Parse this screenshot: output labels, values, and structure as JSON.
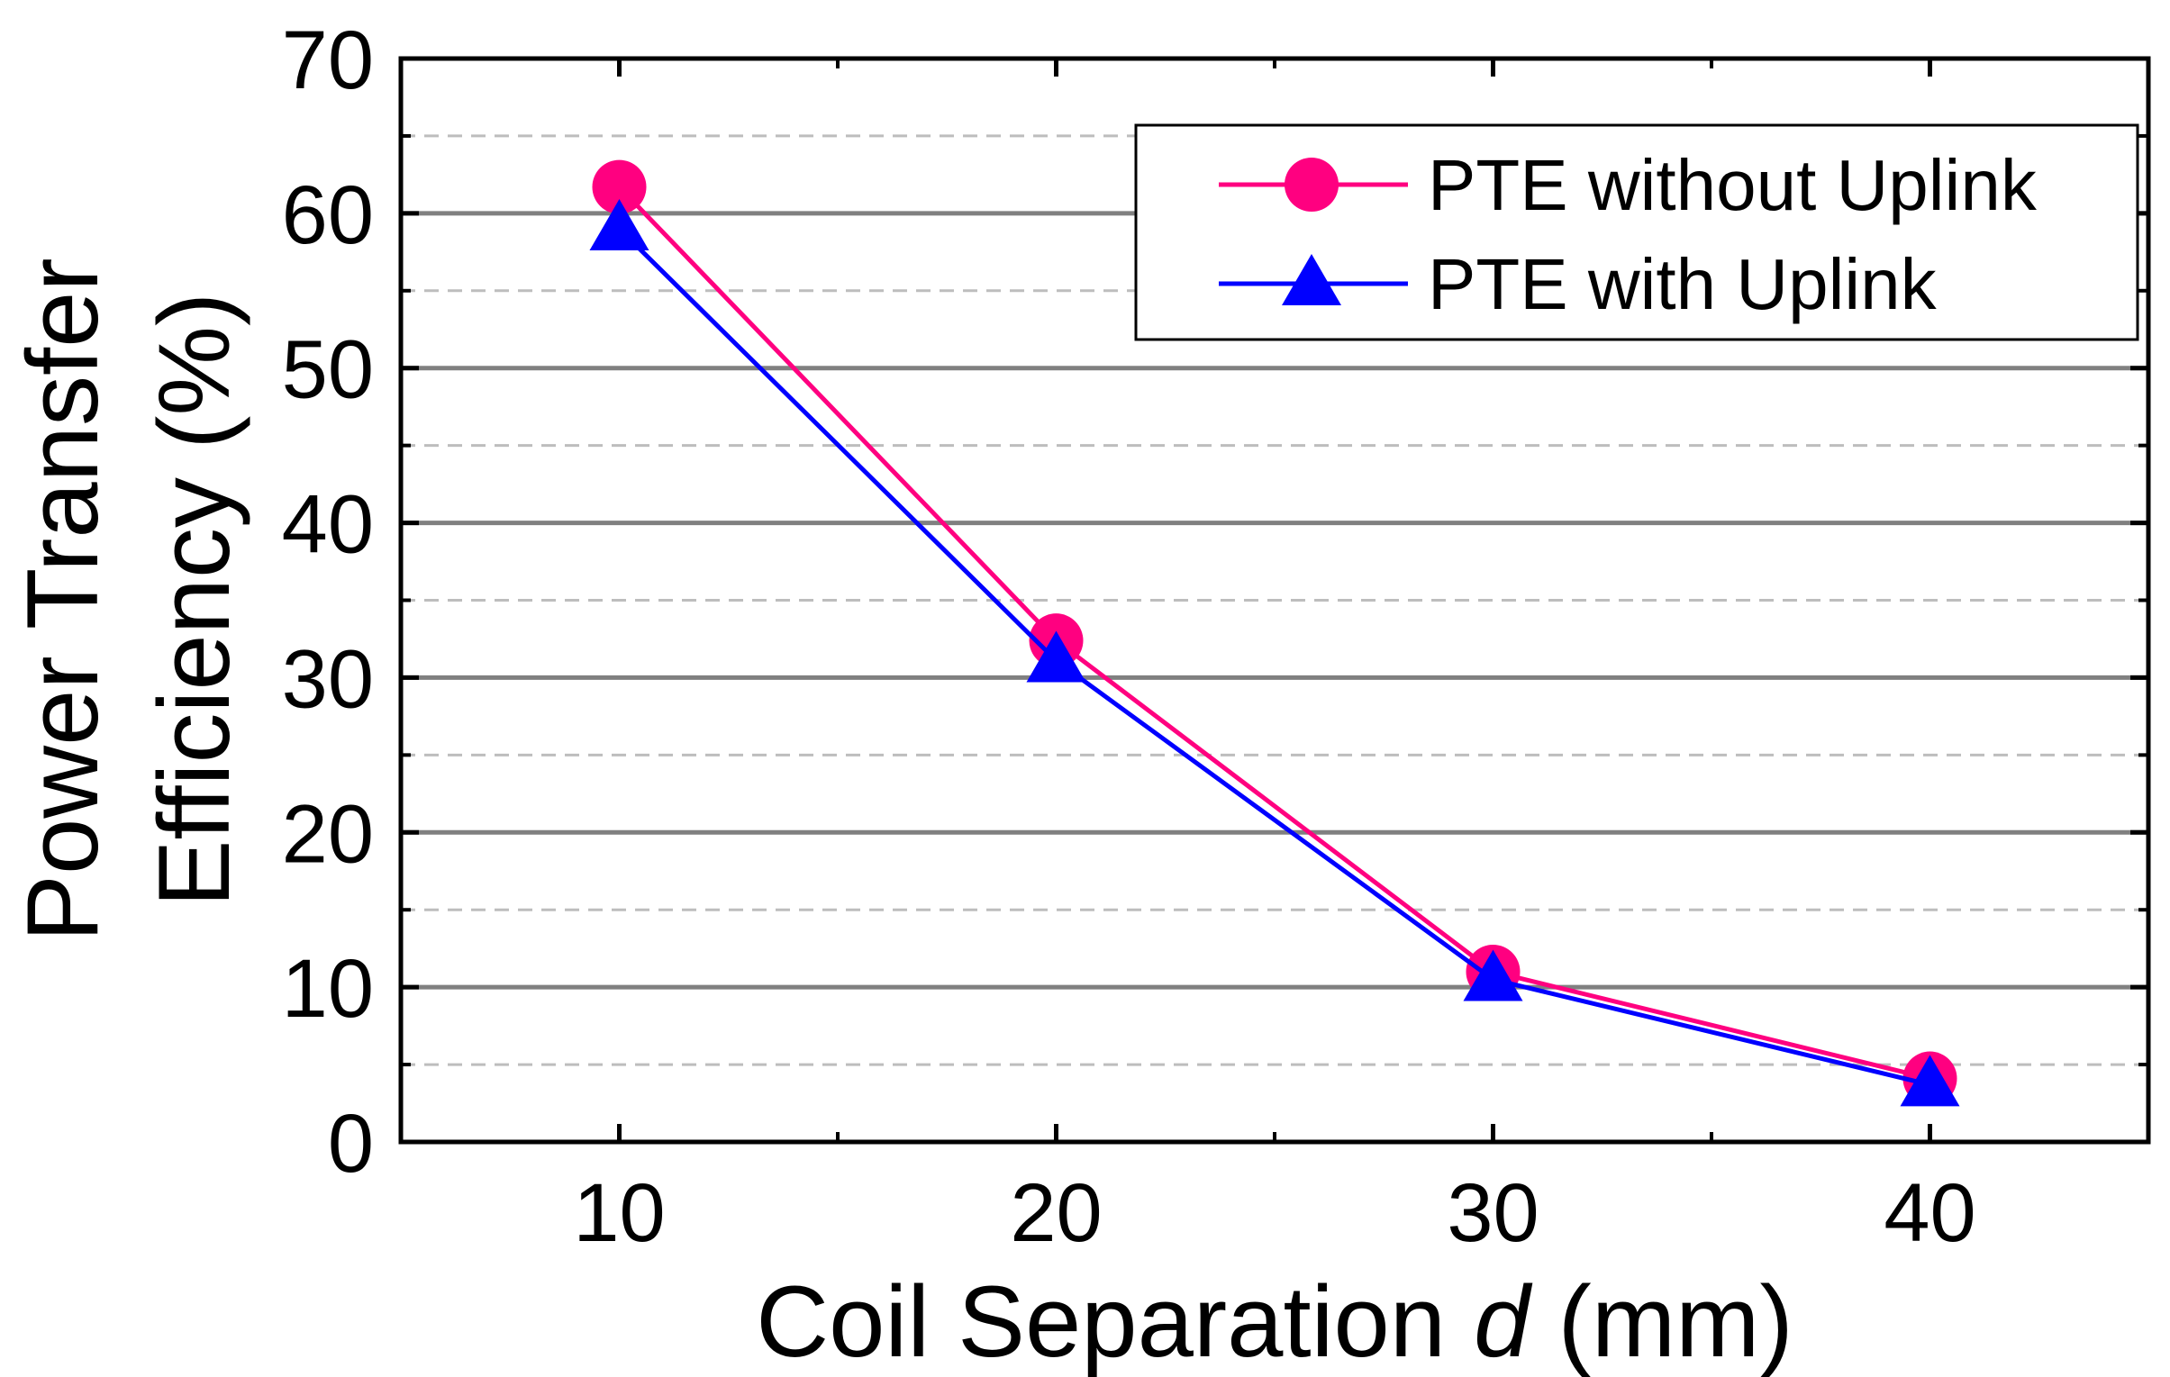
{
  "chart_data": {
    "type": "line",
    "title": "",
    "xlabel": {
      "prefix": "Coil Separation ",
      "italic": "d",
      "suffix": " (mm)"
    },
    "ylabel": {
      "line1": "Power Transfer",
      "line2": "Efficiency (%)"
    },
    "x": [
      10,
      20,
      30,
      40
    ],
    "xlim": [
      5,
      45
    ],
    "ylim": [
      0,
      70
    ],
    "xticks": [
      "10",
      "20",
      "30",
      "40"
    ],
    "yticks": [
      "0",
      "10",
      "20",
      "30",
      "40",
      "50",
      "60",
      "70"
    ],
    "major_grid_y": [
      10,
      20,
      30,
      40,
      50,
      60
    ],
    "minor_grid_y": [
      5,
      15,
      25,
      35,
      45,
      55,
      65
    ],
    "legend_position": "top-right",
    "series": [
      {
        "name": "PTE without Uplink",
        "marker": "circle",
        "color": "#ff0080",
        "values": [
          61.7,
          32.4,
          11.0,
          4.1
        ]
      },
      {
        "name": "PTE with Uplink",
        "marker": "triangle",
        "color": "#0000ff",
        "values": [
          59.0,
          31.1,
          10.5,
          3.7
        ]
      }
    ]
  }
}
